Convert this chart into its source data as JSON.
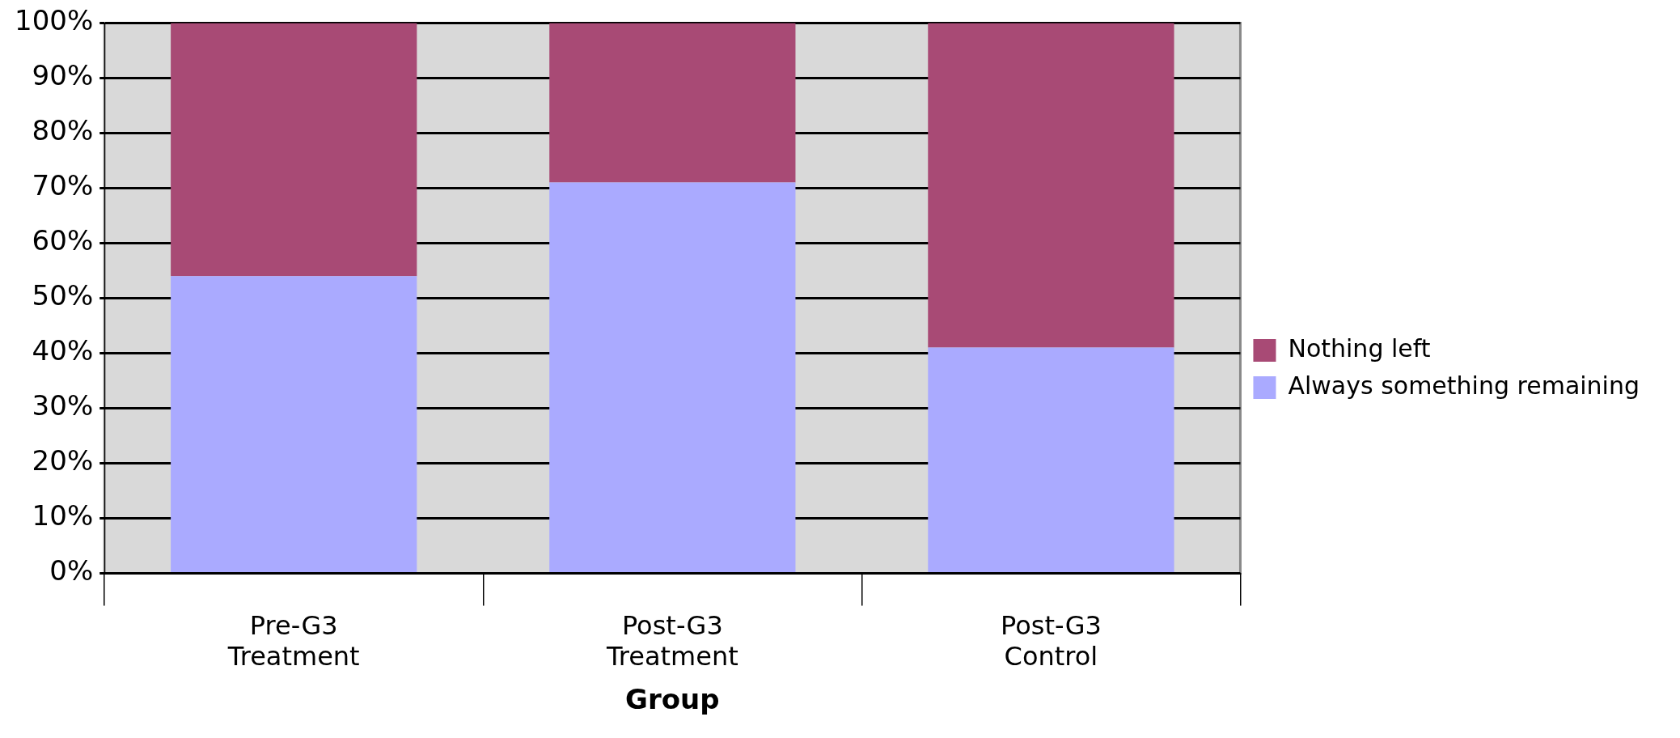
{
  "chart_data": {
    "type": "bar",
    "stacked": true,
    "xlabel": "Group",
    "categories": [
      "Pre-G3 Treatment",
      "Post-G3 Treatment",
      "Post-G3 Control"
    ],
    "series": [
      {
        "name": "Always something remaining",
        "color": "#aaaaff",
        "values": [
          54,
          71,
          41
        ]
      },
      {
        "name": "Nothing left",
        "color": "#a84a75",
        "values": [
          46,
          29,
          59
        ]
      }
    ],
    "ylim": [
      0,
      100
    ],
    "yticks": [
      {
        "value": 0,
        "label": "0%"
      },
      {
        "value": 10,
        "label": "10%"
      },
      {
        "value": 20,
        "label": "20%"
      },
      {
        "value": 30,
        "label": "30%"
      },
      {
        "value": 40,
        "label": "40%"
      },
      {
        "value": 50,
        "label": "50%"
      },
      {
        "value": 60,
        "label": "60%"
      },
      {
        "value": 70,
        "label": "70%"
      },
      {
        "value": 80,
        "label": "80%"
      },
      {
        "value": 90,
        "label": "90%"
      },
      {
        "value": 100,
        "label": "100%"
      }
    ],
    "grid": "y",
    "legend": "right"
  }
}
